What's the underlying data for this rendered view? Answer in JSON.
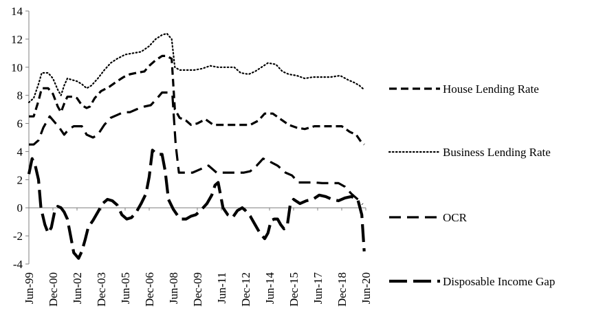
{
  "chart_data": {
    "type": "line",
    "title": "",
    "xlabel": "",
    "ylabel": "",
    "ylim": [
      -4,
      14
    ],
    "yticks": [
      -4,
      -2,
      0,
      2,
      4,
      6,
      8,
      10,
      12,
      14
    ],
    "x_tick_labels": [
      "Jun-99",
      "Dec-00",
      "Jun-02",
      "Dec-03",
      "Jun-05",
      "Dec-06",
      "Jun-08",
      "Dec-09",
      "Jun-11",
      "Dec-12",
      "Jun-14",
      "Dec-15",
      "Jun-17",
      "Dec-18",
      "Jun-20"
    ],
    "x_range": [
      1999.5,
      2020.5
    ],
    "legend_position": "right",
    "grid": false,
    "series": [
      {
        "name": "House Lending Rate",
        "style": "dashed",
        "color": "#000000",
        "points": [
          [
            1999.5,
            6.5
          ],
          [
            1999.8,
            6.5
          ],
          [
            2000.1,
            7.6
          ],
          [
            2000.3,
            8.5
          ],
          [
            2000.7,
            8.5
          ],
          [
            2001.0,
            8.1
          ],
          [
            2001.3,
            7.2
          ],
          [
            2001.5,
            6.8
          ],
          [
            2001.7,
            7.4
          ],
          [
            2001.9,
            7.9
          ],
          [
            2002.2,
            7.9
          ],
          [
            2002.5,
            7.8
          ],
          [
            2002.8,
            7.3
          ],
          [
            2003.1,
            7.1
          ],
          [
            2003.3,
            7.2
          ],
          [
            2003.6,
            7.8
          ],
          [
            2004.0,
            8.3
          ],
          [
            2004.5,
            8.6
          ],
          [
            2005.0,
            9.0
          ],
          [
            2005.4,
            9.3
          ],
          [
            2005.8,
            9.5
          ],
          [
            2006.2,
            9.6
          ],
          [
            2006.7,
            9.7
          ],
          [
            2007.0,
            10.1
          ],
          [
            2007.4,
            10.5
          ],
          [
            2007.8,
            10.8
          ],
          [
            2008.1,
            10.8
          ],
          [
            2008.4,
            10.6
          ],
          [
            2008.6,
            7.0
          ],
          [
            2008.9,
            6.4
          ],
          [
            2009.3,
            6.2
          ],
          [
            2009.6,
            5.9
          ],
          [
            2010.0,
            6.0
          ],
          [
            2010.5,
            6.3
          ],
          [
            2011.0,
            5.9
          ],
          [
            2011.6,
            5.9
          ],
          [
            2012.2,
            5.9
          ],
          [
            2012.8,
            5.9
          ],
          [
            2013.3,
            5.9
          ],
          [
            2013.8,
            6.2
          ],
          [
            2014.2,
            6.7
          ],
          [
            2014.7,
            6.7
          ],
          [
            2015.2,
            6.3
          ],
          [
            2015.7,
            5.9
          ],
          [
            2016.2,
            5.7
          ],
          [
            2016.7,
            5.6
          ],
          [
            2017.3,
            5.8
          ],
          [
            2017.9,
            5.8
          ],
          [
            2018.5,
            5.8
          ],
          [
            2019.0,
            5.8
          ],
          [
            2019.5,
            5.4
          ],
          [
            2019.9,
            5.2
          ],
          [
            2020.2,
            4.7
          ],
          [
            2020.4,
            4.5
          ]
        ]
      },
      {
        "name": "Business Lending Rate",
        "style": "dotted",
        "color": "#000000",
        "points": [
          [
            1999.5,
            7.5
          ],
          [
            1999.8,
            7.8
          ],
          [
            2000.1,
            8.8
          ],
          [
            2000.3,
            9.6
          ],
          [
            2000.7,
            9.6
          ],
          [
            2001.0,
            9.2
          ],
          [
            2001.3,
            8.4
          ],
          [
            2001.5,
            8.0
          ],
          [
            2001.7,
            8.7
          ],
          [
            2001.9,
            9.2
          ],
          [
            2002.2,
            9.1
          ],
          [
            2002.5,
            9.0
          ],
          [
            2002.8,
            8.8
          ],
          [
            2003.1,
            8.5
          ],
          [
            2003.4,
            8.7
          ],
          [
            2003.8,
            9.2
          ],
          [
            2004.2,
            9.8
          ],
          [
            2004.6,
            10.3
          ],
          [
            2005.0,
            10.6
          ],
          [
            2005.5,
            10.9
          ],
          [
            2006.0,
            11.0
          ],
          [
            2006.5,
            11.1
          ],
          [
            2007.0,
            11.5
          ],
          [
            2007.4,
            12.0
          ],
          [
            2007.8,
            12.3
          ],
          [
            2008.1,
            12.4
          ],
          [
            2008.4,
            12.0
          ],
          [
            2008.6,
            10.0
          ],
          [
            2008.9,
            9.8
          ],
          [
            2009.4,
            9.8
          ],
          [
            2009.8,
            9.8
          ],
          [
            2010.3,
            9.9
          ],
          [
            2010.8,
            10.1
          ],
          [
            2011.3,
            10.0
          ],
          [
            2011.8,
            10.0
          ],
          [
            2012.3,
            10.0
          ],
          [
            2012.7,
            9.6
          ],
          [
            2013.2,
            9.5
          ],
          [
            2013.6,
            9.7
          ],
          [
            2014.0,
            10.0
          ],
          [
            2014.4,
            10.3
          ],
          [
            2014.9,
            10.2
          ],
          [
            2015.3,
            9.7
          ],
          [
            2015.7,
            9.5
          ],
          [
            2016.2,
            9.4
          ],
          [
            2016.7,
            9.2
          ],
          [
            2017.2,
            9.3
          ],
          [
            2017.7,
            9.3
          ],
          [
            2018.3,
            9.3
          ],
          [
            2018.9,
            9.4
          ],
          [
            2019.4,
            9.1
          ],
          [
            2019.8,
            8.9
          ],
          [
            2020.1,
            8.7
          ],
          [
            2020.4,
            8.4
          ]
        ]
      },
      {
        "name": "OCR",
        "style": "longdash",
        "color": "#000000",
        "points": [
          [
            1999.5,
            4.5
          ],
          [
            1999.8,
            4.5
          ],
          [
            2000.1,
            4.8
          ],
          [
            2000.4,
            5.7
          ],
          [
            2000.8,
            6.5
          ],
          [
            2001.1,
            6.1
          ],
          [
            2001.4,
            5.7
          ],
          [
            2001.7,
            5.2
          ],
          [
            2002.0,
            5.6
          ],
          [
            2002.3,
            5.8
          ],
          [
            2002.8,
            5.8
          ],
          [
            2003.1,
            5.2
          ],
          [
            2003.5,
            5.0
          ],
          [
            2003.8,
            5.2
          ],
          [
            2004.2,
            5.9
          ],
          [
            2004.6,
            6.4
          ],
          [
            2005.0,
            6.6
          ],
          [
            2005.4,
            6.8
          ],
          [
            2005.8,
            6.8
          ],
          [
            2006.2,
            7.0
          ],
          [
            2006.7,
            7.2
          ],
          [
            2007.1,
            7.3
          ],
          [
            2007.5,
            7.8
          ],
          [
            2007.8,
            8.2
          ],
          [
            2008.2,
            8.2
          ],
          [
            2008.45,
            8.0
          ],
          [
            2008.65,
            4.5
          ],
          [
            2008.85,
            2.5
          ],
          [
            2009.3,
            2.5
          ],
          [
            2009.7,
            2.5
          ],
          [
            2010.3,
            2.8
          ],
          [
            2010.7,
            3.0
          ],
          [
            2011.2,
            2.5
          ],
          [
            2011.7,
            2.5
          ],
          [
            2012.3,
            2.5
          ],
          [
            2012.9,
            2.5
          ],
          [
            2013.3,
            2.6
          ],
          [
            2013.7,
            3.0
          ],
          [
            2014.1,
            3.5
          ],
          [
            2014.5,
            3.3
          ],
          [
            2015.0,
            3.0
          ],
          [
            2015.5,
            2.5
          ],
          [
            2015.9,
            2.3
          ],
          [
            2016.3,
            1.8
          ],
          [
            2016.8,
            1.8
          ],
          [
            2017.3,
            1.8
          ],
          [
            2017.8,
            1.75
          ],
          [
            2018.3,
            1.75
          ],
          [
            2018.8,
            1.75
          ],
          [
            2019.2,
            1.5
          ],
          [
            2019.6,
            1.0
          ],
          [
            2019.9,
            0.7
          ],
          [
            2020.1,
            0.5
          ],
          [
            2020.3,
            0.25
          ]
        ]
      },
      {
        "name": "Disposable Income Gap",
        "style": "heavydash",
        "color": "#000000",
        "points": [
          [
            1999.5,
            2.4
          ],
          [
            1999.7,
            3.5
          ],
          [
            1999.9,
            3.0
          ],
          [
            2000.1,
            2.0
          ],
          [
            2000.25,
            0.0
          ],
          [
            2000.5,
            -1.2
          ],
          [
            2000.7,
            -1.8
          ],
          [
            2000.9,
            -1.4
          ],
          [
            2001.1,
            -0.3
          ],
          [
            2001.3,
            0.1
          ],
          [
            2001.5,
            0.0
          ],
          [
            2001.7,
            -0.3
          ],
          [
            2001.9,
            -0.8
          ],
          [
            2002.1,
            -2.0
          ],
          [
            2002.3,
            -3.2
          ],
          [
            2002.6,
            -3.6
          ],
          [
            2002.8,
            -3.1
          ],
          [
            2003.0,
            -2.3
          ],
          [
            2003.2,
            -1.4
          ],
          [
            2003.5,
            -0.9
          ],
          [
            2003.8,
            -0.3
          ],
          [
            2004.1,
            0.3
          ],
          [
            2004.4,
            0.6
          ],
          [
            2004.7,
            0.5
          ],
          [
            2005.0,
            0.2
          ],
          [
            2005.3,
            -0.5
          ],
          [
            2005.6,
            -0.8
          ],
          [
            2005.9,
            -0.7
          ],
          [
            2006.2,
            -0.3
          ],
          [
            2006.5,
            0.3
          ],
          [
            2006.8,
            1.0
          ],
          [
            2007.0,
            2.2
          ],
          [
            2007.2,
            4.1
          ],
          [
            2007.5,
            3.8
          ],
          [
            2007.8,
            3.8
          ],
          [
            2008.0,
            2.6
          ],
          [
            2008.2,
            0.6
          ],
          [
            2008.5,
            -0.1
          ],
          [
            2008.8,
            -0.6
          ],
          [
            2009.0,
            -0.8
          ],
          [
            2009.3,
            -0.8
          ],
          [
            2009.6,
            -0.6
          ],
          [
            2009.9,
            -0.5
          ],
          [
            2010.2,
            -0.2
          ],
          [
            2010.6,
            0.3
          ],
          [
            2010.9,
            0.9
          ],
          [
            2011.1,
            1.6
          ],
          [
            2011.3,
            1.8
          ],
          [
            2011.6,
            0.0
          ],
          [
            2011.9,
            -0.5
          ],
          [
            2012.2,
            -0.7
          ],
          [
            2012.5,
            -0.2
          ],
          [
            2012.8,
            0.0
          ],
          [
            2013.0,
            -0.2
          ],
          [
            2013.3,
            -0.6
          ],
          [
            2013.6,
            -1.2
          ],
          [
            2013.9,
            -1.8
          ],
          [
            2014.2,
            -2.2
          ],
          [
            2014.4,
            -1.8
          ],
          [
            2014.6,
            -0.9
          ],
          [
            2014.8,
            -0.8
          ],
          [
            2015.0,
            -0.8
          ],
          [
            2015.2,
            -1.2
          ],
          [
            2015.4,
            -1.5
          ],
          [
            2015.6,
            -1.3
          ],
          [
            2015.8,
            0.3
          ],
          [
            2016.0,
            0.6
          ],
          [
            2016.4,
            0.3
          ],
          [
            2016.8,
            0.5
          ],
          [
            2017.2,
            0.6
          ],
          [
            2017.6,
            0.9
          ],
          [
            2018.0,
            0.8
          ],
          [
            2018.4,
            0.6
          ],
          [
            2018.8,
            0.5
          ],
          [
            2019.2,
            0.7
          ],
          [
            2019.6,
            0.8
          ],
          [
            2020.0,
            0.6
          ],
          [
            2020.25,
            -0.5
          ],
          [
            2020.4,
            -3.1
          ]
        ]
      }
    ]
  }
}
